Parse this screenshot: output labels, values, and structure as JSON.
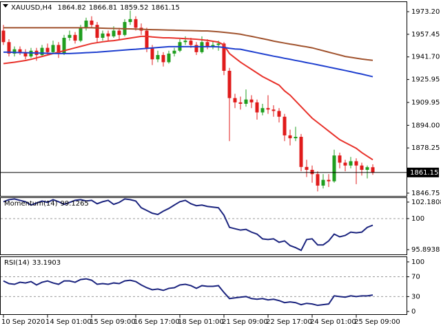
{
  "chart_data": [
    {
      "type": "candlestick",
      "title": "XAUUSD,H4",
      "categories": [
        "10 Sep 2020",
        null,
        null,
        null,
        null,
        null,
        null,
        null,
        "14 Sep 01:00",
        null,
        null,
        null,
        null,
        null,
        null,
        null,
        "15 Sep 09:00",
        null,
        null,
        null,
        null,
        null,
        null,
        null,
        "16 Sep 17:00",
        null,
        null,
        null,
        null,
        null,
        null,
        null,
        "18 Sep 01:00",
        null,
        null,
        null,
        null,
        null,
        null,
        null,
        "21 Sep 09:00",
        null,
        null,
        null,
        null,
        null,
        null,
        null,
        "22 Sep 17:00",
        null,
        null,
        null,
        null,
        null,
        null,
        null,
        "24 Sep 01:00",
        null,
        null,
        null,
        null,
        null,
        null,
        null,
        "25 Sep 09:00",
        null,
        null,
        null
      ],
      "open": [
        1960,
        1952,
        1944,
        1947,
        1945,
        1942,
        1946,
        1943,
        1948,
        1945,
        1950,
        1944,
        1955,
        1957,
        1953,
        1962,
        1967,
        1964,
        1955,
        1958,
        1956,
        1960,
        1957,
        1966,
        1968,
        1962,
        1960,
        1948,
        1940,
        1943,
        1938,
        1944,
        1946,
        1952,
        1953,
        1950,
        1945,
        1952,
        1949,
        1950,
        1951,
        1932,
        1913,
        1910,
        1909,
        1912,
        1910,
        1903,
        1906,
        1905,
        1904,
        1900,
        1887,
        1885,
        1886,
        1865,
        1863,
        1860,
        1852,
        1856,
        1855,
        1873,
        1868,
        1866,
        1869,
        1866,
        1863,
        1864.82
      ],
      "high": [
        1964,
        1954,
        1949,
        1949,
        1947,
        1948,
        1948,
        1950,
        1951,
        1953,
        1952,
        1957,
        1960,
        1959,
        1964,
        1969,
        1970,
        1966,
        1960,
        1960,
        1963,
        1962,
        1968,
        1974,
        1970,
        1965,
        1962,
        1950,
        1946,
        1945,
        1946,
        1948,
        1954,
        1956,
        1955,
        1952,
        1956,
        1954,
        1953,
        1953,
        1952,
        1934,
        1916,
        1914,
        1919,
        1915,
        1912,
        1909,
        1915,
        1908,
        1906,
        1902,
        1891,
        1893,
        1888,
        1870,
        1866,
        1862,
        1860,
        1860,
        1877,
        1875,
        1870,
        1872,
        1871,
        1868,
        1866,
        1866.81
      ],
      "low": [
        1950,
        1942,
        1942,
        1943,
        1940,
        1941,
        1939,
        1942,
        1943,
        1944,
        1941,
        1943,
        1953,
        1951,
        1952,
        1960,
        1962,
        1952,
        1953,
        1953,
        1955,
        1954,
        1956,
        1964,
        1960,
        1957,
        1945,
        1936,
        1938,
        1935,
        1937,
        1942,
        1945,
        1950,
        1948,
        1943,
        1944,
        1947,
        1947,
        1946,
        1929,
        1883,
        1906,
        1905,
        1907,
        1906,
        1898,
        1901,
        1902,
        1900,
        1896,
        1883,
        1880,
        1883,
        1862,
        1858,
        1854,
        1848,
        1850,
        1851,
        1854,
        1864,
        1862,
        1864,
        1853,
        1859,
        1857,
        1859.52
      ],
      "close": [
        1952,
        1944,
        1947,
        1945,
        1942,
        1946,
        1943,
        1948,
        1945,
        1950,
        1944,
        1955,
        1957,
        1953,
        1962,
        1967,
        1964,
        1955,
        1958,
        1956,
        1960,
        1957,
        1966,
        1968,
        1962,
        1960,
        1948,
        1940,
        1943,
        1938,
        1944,
        1946,
        1952,
        1953,
        1950,
        1945,
        1952,
        1949,
        1950,
        1951,
        1932,
        1913,
        1910,
        1909,
        1912,
        1910,
        1903,
        1906,
        1905,
        1904,
        1900,
        1887,
        1885,
        1886,
        1865,
        1863,
        1860,
        1852,
        1856,
        1855,
        1873,
        1868,
        1866,
        1869,
        1866,
        1863,
        1864.82,
        1861.15
      ],
      "up_color": "#1f9e1f",
      "down_color": "#e01b1b",
      "overlays": [
        {
          "color": "#e8312a",
          "values": [
            1937,
            1937.5,
            1938,
            1938.6,
            1939.2,
            1940,
            1941,
            1942,
            1943,
            1944,
            1945,
            1946,
            1947,
            1948,
            1949,
            1950,
            1951,
            1951.6,
            1952.2,
            1952.7,
            1953,
            1953.6,
            1954.2,
            1954.8,
            1955.4,
            1956,
            1956,
            1955.6,
            1955.3,
            1955,
            1955,
            1954.8,
            1954.6,
            1954.4,
            1954.2,
            1954,
            1953.6,
            1953.2,
            1952.6,
            1952,
            1950,
            1944,
            1941,
            1938,
            1935.5,
            1933,
            1930.5,
            1928,
            1926,
            1924,
            1922,
            1918,
            1915,
            1911,
            1907,
            1903,
            1899,
            1896,
            1893,
            1890,
            1887,
            1884,
            1882,
            1880,
            1878,
            1875,
            1872.5,
            1870
          ]
        },
        {
          "color": "#a0522d",
          "values": [
            1962,
            1962,
            1962,
            1962,
            1962,
            1962,
            1962,
            1962,
            1962,
            1962,
            1962,
            1962,
            1962,
            1962,
            1962,
            1962,
            1962,
            1961.8,
            1961.7,
            1961.6,
            1961.5,
            1961.4,
            1961.3,
            1961.2,
            1961.1,
            1961,
            1960.8,
            1960.7,
            1960.6,
            1960.5,
            1960.4,
            1960.3,
            1960.2,
            1960.1,
            1960,
            1959.9,
            1959.8,
            1959.8,
            1959.5,
            1959.2,
            1958.8,
            1958.4,
            1958,
            1957.5,
            1956.7,
            1956,
            1955.2,
            1954.4,
            1953.6,
            1952.7,
            1952,
            1951.3,
            1950.6,
            1950,
            1949.3,
            1948.7,
            1948,
            1947,
            1946,
            1945,
            1944,
            1943,
            1942,
            1941.4,
            1940.8,
            1940.2,
            1939.7,
            1939.3
          ]
        },
        {
          "color": "#1e3fcf",
          "values": [
            1945,
            1945,
            1944.8,
            1944.7,
            1944.6,
            1944.5,
            1944.4,
            1944.3,
            1944.2,
            1944.1,
            1944,
            1944,
            1944,
            1944.2,
            1944.4,
            1944.6,
            1944.8,
            1945,
            1945.3,
            1945.6,
            1945.9,
            1946.2,
            1946.5,
            1946.8,
            1947,
            1947.3,
            1947.6,
            1947.9,
            1948.2,
            1948.5,
            1948.8,
            1948.8,
            1948.8,
            1948.8,
            1948.8,
            1948.8,
            1948.8,
            1948.8,
            1948.8,
            1948.7,
            1948.3,
            1947.7,
            1947.2,
            1947,
            1946.2,
            1945.4,
            1944.6,
            1943.8,
            1943,
            1942.2,
            1941.5,
            1940.7,
            1940,
            1939.2,
            1938.5,
            1937.7,
            1937,
            1936.2,
            1935.4,
            1934.6,
            1933.8,
            1933,
            1932.2,
            1931.4,
            1930.5,
            1929.7,
            1928.8,
            1927.9
          ]
        }
      ],
      "ylim": [
        1844.8,
        1979.9
      ],
      "yticks": [
        {
          "value": 1973.2,
          "label": "1973.20"
        },
        1957.45,
        {
          "value": 1941.7,
          "label": "1941.70"
        },
        1925.95,
        1909.95,
        {
          "value": 1894,
          "label": "1894.00"
        },
        1878.25,
        1846.75
      ]
    },
    {
      "type": "line",
      "title": "Momentum(14)",
      "color": "#1a237e",
      "values": [
        102.23,
        102.5,
        102.59,
        102.41,
        102.23,
        101.79,
        102.05,
        102.32,
        102.14,
        102.5,
        102.23,
        101.88,
        102.14,
        102.41,
        102.5,
        102.32,
        102.41,
        101.96,
        102.23,
        102.41,
        101.88,
        102.14,
        102.59,
        102.5,
        102.32,
        101.43,
        101.07,
        100.71,
        100.54,
        100.98,
        101.34,
        101.79,
        102.23,
        102.41,
        101.96,
        101.7,
        101.79,
        101.61,
        101.52,
        101.43,
        100.45,
        98.84,
        98.66,
        98.48,
        98.57,
        98.21,
        97.95,
        97.32,
        97.23,
        97.32,
        96.87,
        97.05,
        96.43,
        96.16,
        95.8,
        97.23,
        97.32,
        96.52,
        96.52,
        97.05,
        97.95,
        97.59,
        97.77,
        98.21,
        98.12,
        98.21,
        98.84,
        99.1265
      ],
      "ylim": [
        95.27,
        102.72
      ],
      "yticks": [
        102.1808,
        100,
        95.8938
      ],
      "levels": [
        100
      ]
    },
    {
      "type": "line",
      "title": "RSI(14)",
      "color": "#1a237e",
      "values": [
        61.6,
        56.2,
        54.8,
        58.9,
        57.5,
        60.3,
        53.4,
        58.9,
        61.6,
        57.5,
        54.8,
        61.6,
        61.6,
        58.9,
        64.4,
        65.8,
        63,
        54.8,
        56.2,
        54.8,
        57.5,
        56.2,
        61.6,
        63,
        60.3,
        53.4,
        47.9,
        43.8,
        45.2,
        42.5,
        46.6,
        47.9,
        53.4,
        54.8,
        52.1,
        46.6,
        52.1,
        50.7,
        50.7,
        52.1,
        38.4,
        26,
        27.4,
        28.8,
        30.1,
        26,
        24.7,
        26,
        23.3,
        24.7,
        21.9,
        17.8,
        19.2,
        17.8,
        13.7,
        16.4,
        15.1,
        12.3,
        13.7,
        15.1,
        31.5,
        30.1,
        28.8,
        31.5,
        30.1,
        31.5,
        31.5,
        33.1903
      ],
      "ylim": [
        -5.5,
        109.6
      ],
      "yticks": [
        100,
        70,
        30,
        0
      ],
      "levels": [
        70,
        30
      ]
    }
  ]
}
